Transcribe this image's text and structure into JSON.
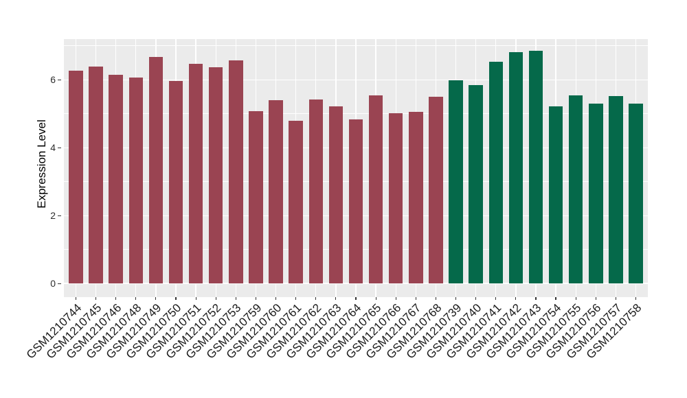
{
  "chart_data": {
    "type": "bar",
    "title": "",
    "ylabel": "Expression Level",
    "xlabel": "",
    "ylim": [
      0,
      7.2
    ],
    "yticks": [
      0,
      2,
      4,
      6
    ],
    "yminor": [
      1,
      3,
      5,
      7
    ],
    "grid": true,
    "legend_position": "none",
    "panel_background": "#EBEBEB",
    "gridline_color": "#FFFFFF",
    "tick_mark_color": "#333333",
    "colors": {
      "maroon": "#9A4452",
      "green": "#05694A"
    },
    "bars": [
      {
        "label": "GSM1210744",
        "value": 6.27,
        "group": "maroon"
      },
      {
        "label": "GSM1210745",
        "value": 6.39,
        "group": "maroon"
      },
      {
        "label": "GSM1210746",
        "value": 6.15,
        "group": "maroon"
      },
      {
        "label": "GSM1210748",
        "value": 6.06,
        "group": "maroon"
      },
      {
        "label": "GSM1210749",
        "value": 6.67,
        "group": "maroon"
      },
      {
        "label": "GSM1210750",
        "value": 5.97,
        "group": "maroon"
      },
      {
        "label": "GSM1210751",
        "value": 6.48,
        "group": "maroon"
      },
      {
        "label": "GSM1210752",
        "value": 6.37,
        "group": "maroon"
      },
      {
        "label": "GSM1210753",
        "value": 6.57,
        "group": "maroon"
      },
      {
        "label": "GSM1210759",
        "value": 5.07,
        "group": "maroon"
      },
      {
        "label": "GSM1210760",
        "value": 5.41,
        "group": "maroon"
      },
      {
        "label": "GSM1210761",
        "value": 4.79,
        "group": "maroon"
      },
      {
        "label": "GSM1210762",
        "value": 5.43,
        "group": "maroon"
      },
      {
        "label": "GSM1210763",
        "value": 5.22,
        "group": "maroon"
      },
      {
        "label": "GSM1210764",
        "value": 4.84,
        "group": "maroon"
      },
      {
        "label": "GSM1210765",
        "value": 5.55,
        "group": "maroon"
      },
      {
        "label": "GSM1210766",
        "value": 5.01,
        "group": "maroon"
      },
      {
        "label": "GSM1210767",
        "value": 5.06,
        "group": "maroon"
      },
      {
        "label": "GSM1210768",
        "value": 5.5,
        "group": "maroon"
      },
      {
        "label": "GSM1210739",
        "value": 5.98,
        "group": "green"
      },
      {
        "label": "GSM1210740",
        "value": 5.84,
        "group": "green"
      },
      {
        "label": "GSM1210741",
        "value": 6.53,
        "group": "green"
      },
      {
        "label": "GSM1210742",
        "value": 6.81,
        "group": "green"
      },
      {
        "label": "GSM1210743",
        "value": 6.86,
        "group": "green"
      },
      {
        "label": "GSM1210754",
        "value": 5.21,
        "group": "green"
      },
      {
        "label": "GSM1210755",
        "value": 5.54,
        "group": "green"
      },
      {
        "label": "GSM1210756",
        "value": 5.31,
        "group": "green"
      },
      {
        "label": "GSM1210757",
        "value": 5.52,
        "group": "green"
      },
      {
        "label": "GSM1210758",
        "value": 5.3,
        "group": "green"
      }
    ]
  }
}
